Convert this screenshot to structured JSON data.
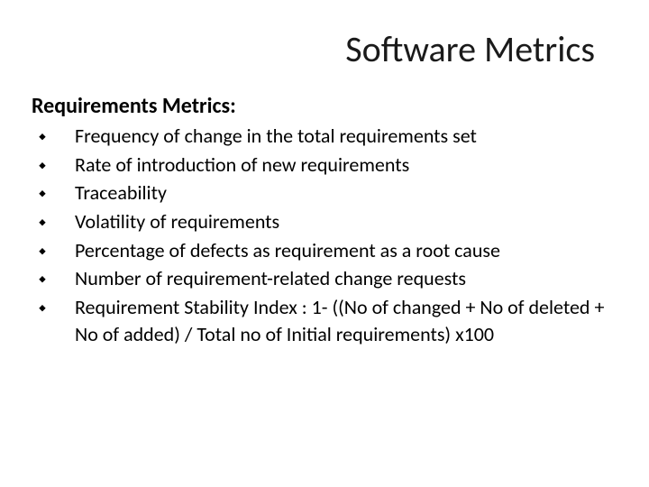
{
  "slide": {
    "title": "Software Metrics",
    "subheading": "Requirements Metrics:",
    "bullets": [
      "Frequency of change in the total requirements set",
      "Rate of introduction of new requirements",
      "Traceability",
      "Volatility of requirements",
      "Percentage of defects as requirement as a root cause",
      "Number of requirement-related change requests",
      "Requirement Stability Index : 1- ((No of changed + No of deleted + No of added) / Total no of Initial requirements) x100"
    ],
    "bullet_marker": "⬩"
  },
  "style": {
    "background_color": "#ffffff",
    "title_color": "#1a1a1a",
    "text_color": "#000000",
    "title_fontsize": 40,
    "subheading_fontsize": 24,
    "body_fontsize": 22,
    "font_family": "Calibri"
  }
}
